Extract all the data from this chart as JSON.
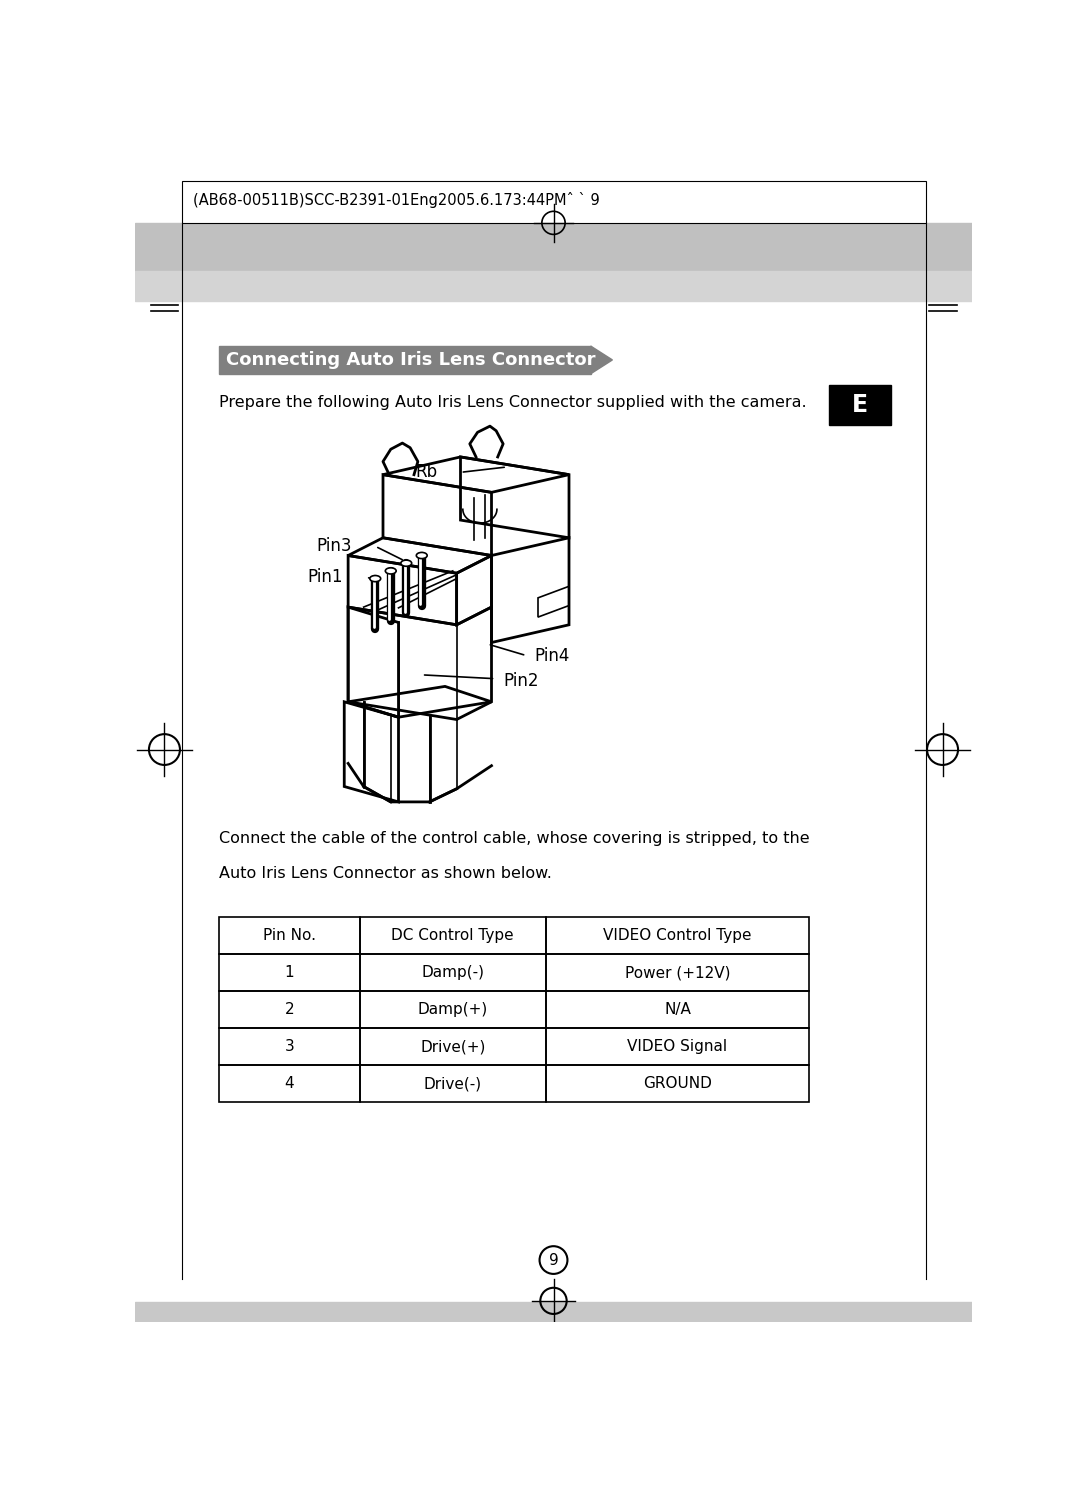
{
  "page_bg": "#ffffff",
  "header_bg": "#c8c8c8",
  "header_text": "(AB68-00511B)SCC-B2391-01Eng2005.6.173:44PMˆ ` 9",
  "header_text_size": 10.5,
  "section_title": "Connecting Auto Iris Lens Connector",
  "section_title_bg": "#808080",
  "section_title_color": "#ffffff",
  "section_title_size": 13,
  "prepare_text": "Prepare the following Auto Iris Lens Connector supplied with the camera.",
  "prepare_text_size": 11.5,
  "e_label": "E",
  "e_bg": "#000000",
  "e_color": "#ffffff",
  "connect_text_line1": "Connect the cable of the control cable, whose covering is stripped, to the",
  "connect_text_line2": "Auto Iris Lens Connector as shown below.",
  "connect_text_size": 11.5,
  "table_headers": [
    "Pin No.",
    "DC Control Type",
    "VIDEO Control Type"
  ],
  "table_rows": [
    [
      "1",
      "Damp(-)",
      "Power (+12V)"
    ],
    [
      "2",
      "Damp(+)",
      "N/A"
    ],
    [
      "3",
      "Drive(+)",
      "VIDEO Signal"
    ],
    [
      "4",
      "Drive(-)",
      "GROUND"
    ]
  ],
  "table_font_size": 11,
  "page_number": "9"
}
